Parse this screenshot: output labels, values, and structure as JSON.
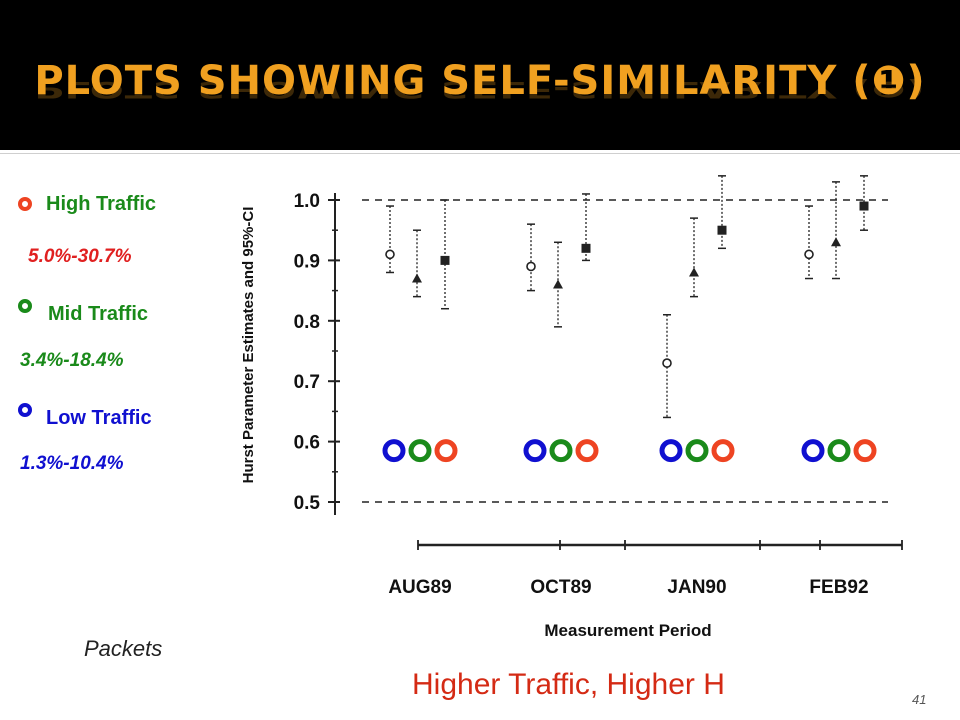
{
  "slide": {
    "title": "Plots Showing Self-Similarity (❶)",
    "packets_label": "Packets",
    "headline": "Higher Traffic, Higher H",
    "page_number": "41"
  },
  "legend": [
    {
      "label": "High Traffic",
      "range": "5.0%-30.7%",
      "ring_color": "#ee4422",
      "label_color": "#1a8a1a",
      "range_color": "#e02020"
    },
    {
      "label": "Mid Traffic",
      "range": "3.4%-18.4%",
      "ring_color": "#1a8a1a",
      "label_color": "#1a8a1a",
      "range_color": "#1a8a1a"
    },
    {
      "label": "Low Traffic",
      "range": "1.3%-10.4%",
      "ring_color": "#1010d0",
      "label_color": "#1010d0",
      "range_color": "#1010d0"
    }
  ],
  "chart_data": {
    "type": "scatter",
    "ylabel": "Hurst Parameter Estimates and 95%-CI",
    "xlabel": "Measurement Period",
    "categories": [
      "AUG89",
      "OCT89",
      "JAN90",
      "FEB92"
    ],
    "yticks": [
      "1.0",
      "0.9",
      "0.8",
      "0.7",
      "0.6",
      "0.5"
    ],
    "ylim": [
      0.5,
      1.0
    ],
    "reference_lines": [
      1.0,
      0.5
    ],
    "grid": false,
    "series": [
      {
        "marker": "circle",
        "values": [
          0.91,
          0.89,
          0.73,
          0.91
        ],
        "ci": [
          [
            0.88,
            0.99
          ],
          [
            0.85,
            0.96
          ],
          [
            0.64,
            0.81
          ],
          [
            0.87,
            0.99
          ]
        ]
      },
      {
        "marker": "triangle",
        "values": [
          0.87,
          0.86,
          0.88,
          0.93
        ],
        "ci": [
          [
            0.84,
            0.95
          ],
          [
            0.79,
            0.93
          ],
          [
            0.84,
            0.97
          ],
          [
            0.87,
            1.03
          ]
        ]
      },
      {
        "marker": "square",
        "values": [
          0.9,
          0.92,
          0.95,
          0.99
        ],
        "ci": [
          [
            0.82,
            1.0
          ],
          [
            0.9,
            1.01
          ],
          [
            0.92,
            1.04
          ],
          [
            0.95,
            1.04
          ]
        ]
      }
    ],
    "ring_overlay_colors": [
      "#1010d0",
      "#1a8a1a",
      "#ee4422"
    ]
  }
}
